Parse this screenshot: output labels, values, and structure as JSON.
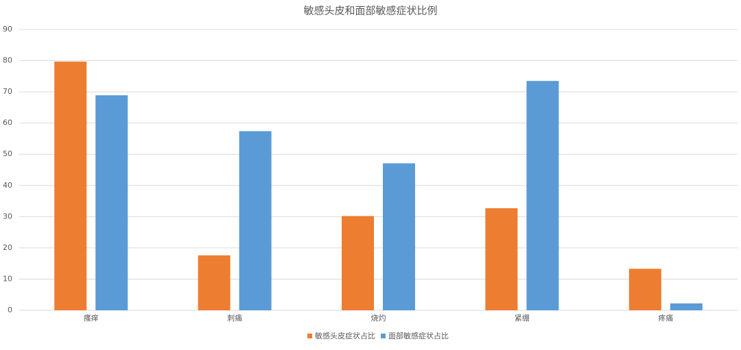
{
  "chart_data": {
    "type": "bar",
    "title": "敏感头皮和面部敏感症状比例",
    "categories": [
      "瘙痒",
      "刺痛",
      "烧灼",
      "紧绷",
      "疼痛"
    ],
    "series": [
      {
        "name": "敏感头皮症状占比",
        "color": "#ed7d31",
        "values": [
          79.7,
          17.6,
          30.2,
          32.7,
          13.3
        ]
      },
      {
        "name": "面部敏感症状占比",
        "color": "#5b9bd5",
        "values": [
          68.9,
          57.4,
          47.1,
          73.5,
          2.2
        ]
      }
    ],
    "ylim": [
      0,
      90
    ],
    "yticks": [
      0,
      10,
      20,
      30,
      40,
      50,
      60,
      70,
      80,
      90
    ],
    "grid": true,
    "legend": "bottom"
  }
}
